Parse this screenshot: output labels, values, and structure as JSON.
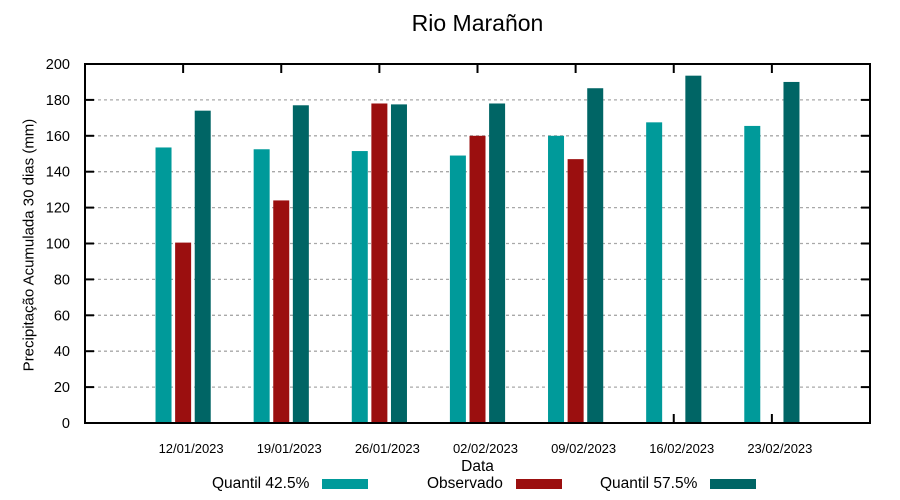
{
  "chart_data": {
    "type": "bar",
    "title": "Rio Marañon",
    "xlabel": "Data",
    "ylabel": "Precipitação Acumulada 30 dias (mm)",
    "ylim": [
      0,
      200
    ],
    "ytick_step": 20,
    "grid": "horizontal-dashed",
    "legend_position": "bottom",
    "categories": [
      "12/01/2023",
      "19/01/2023",
      "26/01/2023",
      "02/02/2023",
      "09/02/2023",
      "16/02/2023",
      "23/02/2023"
    ],
    "series": [
      {
        "name": "Quantil 42.5%",
        "key": "quantil-42-5",
        "color": "#009a9a",
        "values": [
          153.5,
          152.5,
          151.5,
          149,
          160,
          167.5,
          165.5
        ]
      },
      {
        "name": "Observado",
        "key": "observado",
        "color": "#9b0f0f",
        "values": [
          100.5,
          124,
          178,
          160,
          147,
          null,
          null
        ]
      },
      {
        "name": "Quantil 57.5%",
        "key": "quantil-57-5",
        "color": "#006565",
        "values": [
          174,
          177,
          177.5,
          178,
          186.5,
          193.5,
          190
        ]
      }
    ],
    "frame_color": "#000000",
    "gridline_color": "#a8a8a8"
  }
}
